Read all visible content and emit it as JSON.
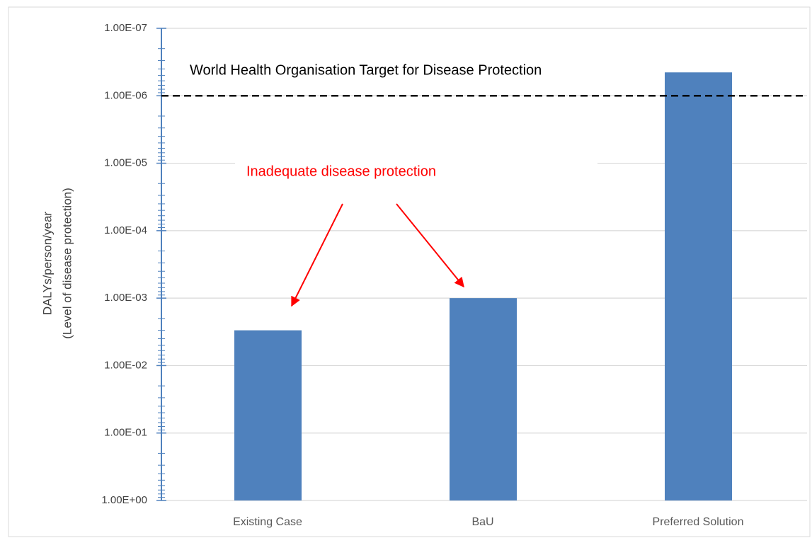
{
  "chart_data": {
    "type": "bar",
    "categories": [
      "Existing Case",
      "BaU",
      "Preferred Solution"
    ],
    "values": [
      0.003,
      0.001,
      4.5e-07
    ],
    "color": "#4f81bd",
    "y_label": [
      "DALYs/person/year",
      "(Level of disease protection)"
    ],
    "log_scale": true,
    "y_reversed": true,
    "ylim": [
      1e-07,
      1
    ],
    "yticks": [
      {
        "value": 1e-07,
        "label": "1.00E-07"
      },
      {
        "value": 1e-06,
        "label": "1.00E-06"
      },
      {
        "value": 1e-05,
        "label": "1.00E-05"
      },
      {
        "value": 0.0001,
        "label": "1.00E-04"
      },
      {
        "value": 0.001,
        "label": "1.00E-03"
      },
      {
        "value": 0.01,
        "label": "1.00E-02"
      },
      {
        "value": 0.1,
        "label": "1.00E-01"
      },
      {
        "value": 1,
        "label": "1.00E+00"
      }
    ],
    "grid": true,
    "reference_line": {
      "value": 1e-06,
      "label": "World Health Organisation Target for Disease Protection"
    },
    "annotation": "Inadequate disease protection"
  }
}
